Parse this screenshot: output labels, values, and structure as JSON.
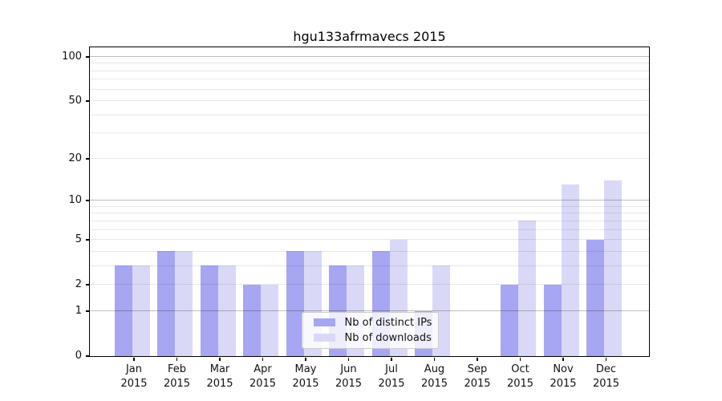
{
  "title": "hgu133afrmavecs 2015",
  "chart_data": {
    "type": "bar",
    "title": "hgu133afrmavecs 2015",
    "xlabel": "",
    "ylabel": "",
    "categories": [
      "Jan 2015",
      "Feb 2015",
      "Mar 2015",
      "Apr 2015",
      "May 2015",
      "Jun 2015",
      "Jul 2015",
      "Aug 2015",
      "Sep 2015",
      "Oct 2015",
      "Nov 2015",
      "Dec 2015"
    ],
    "series": [
      {
        "name": "Nb of distinct IPs",
        "color": "#a6a6f2",
        "values": [
          3,
          4,
          3,
          2,
          4,
          3,
          4,
          1,
          0,
          2,
          2,
          5
        ]
      },
      {
        "name": "Nb of downloads",
        "color": "#d9d9f7",
        "values": [
          3,
          4,
          3,
          2,
          4,
          3,
          5,
          3,
          0,
          7,
          13,
          14
        ]
      }
    ],
    "y_axis": {
      "scale": "log1p",
      "ylim": [
        0,
        116
      ],
      "tick_values": [
        0,
        1,
        2,
        5,
        10,
        20,
        50,
        100
      ],
      "major_gridlines": [
        1,
        10,
        100
      ],
      "minor_gridlines": [
        2,
        3,
        4,
        5,
        6,
        7,
        8,
        9,
        20,
        30,
        40,
        50,
        60,
        70,
        80,
        90
      ],
      "grid": "on"
    },
    "legend": {
      "position": "lower-center-inside",
      "entries": [
        "Nb of distinct IPs",
        "Nb of downloads"
      ]
    }
  },
  "colors": {
    "background": "#ffffff",
    "axis": "#000000",
    "text": "#111111",
    "bar_distinct_ips": "#a6a6f2",
    "bar_downloads": "#d9d9f7",
    "grid_major": "#bfbfbf",
    "grid_minor": "#e8e8e8",
    "legend_border": "#cccccc"
  }
}
